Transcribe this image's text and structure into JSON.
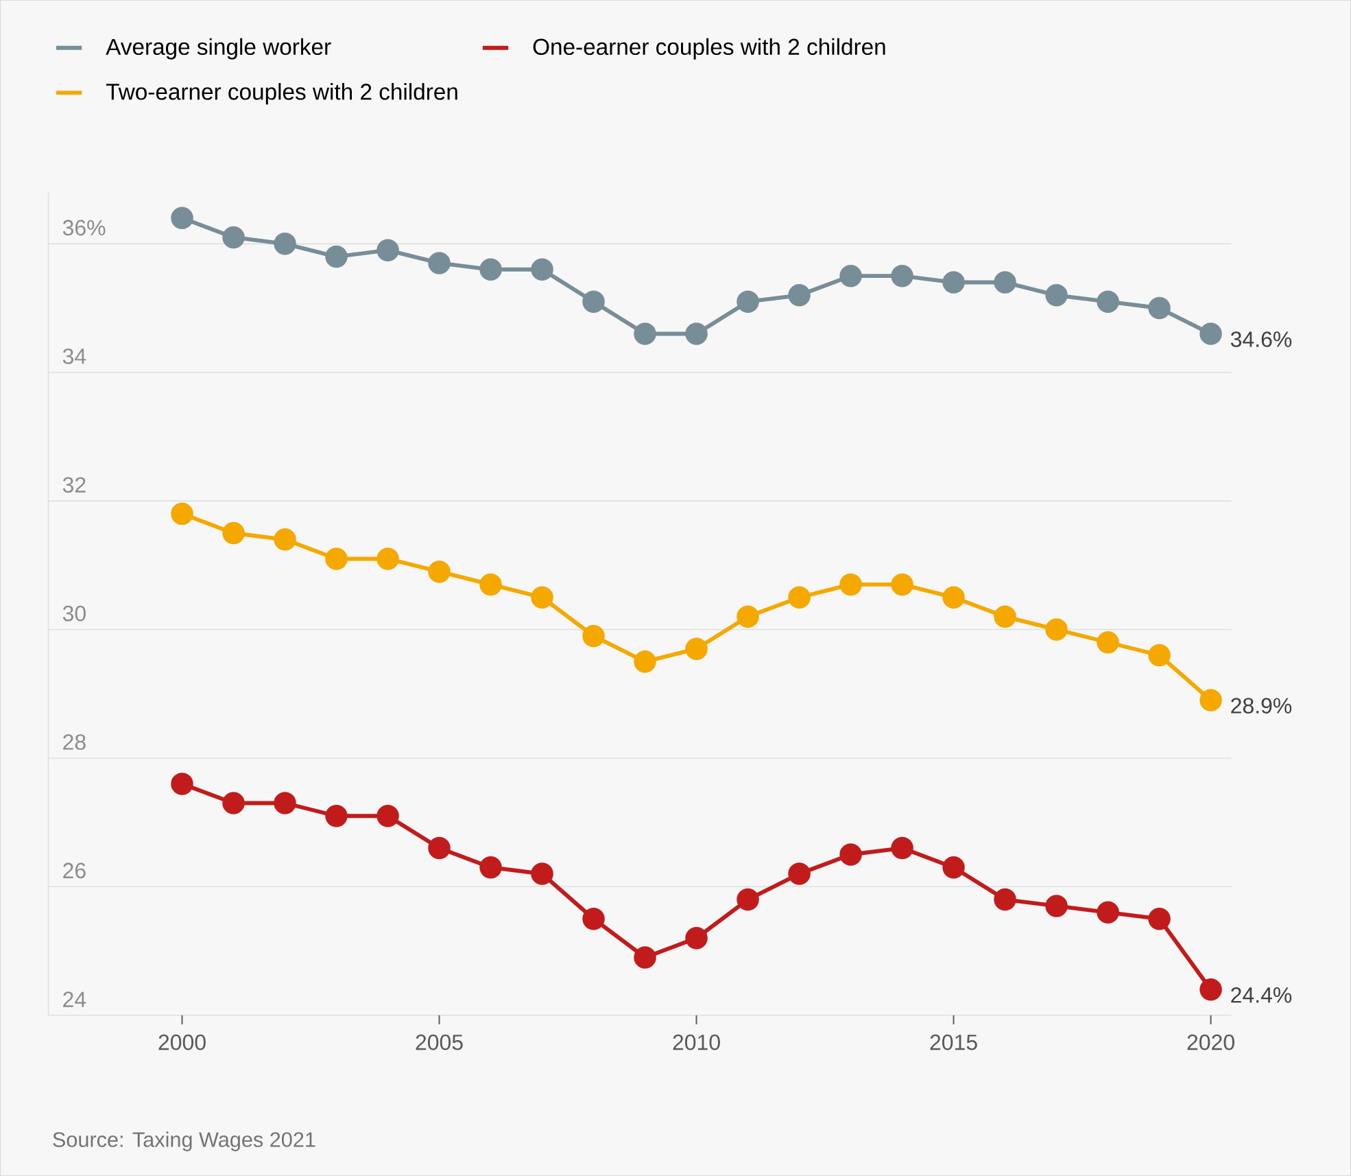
{
  "chart_data": {
    "type": "line",
    "x": [
      2000,
      2001,
      2002,
      2003,
      2004,
      2005,
      2006,
      2007,
      2008,
      2009,
      2010,
      2011,
      2012,
      2013,
      2014,
      2015,
      2016,
      2017,
      2018,
      2019,
      2020
    ],
    "series": [
      {
        "name": "Average single worker",
        "color": "#778d98",
        "values": [
          36.4,
          36.1,
          36.0,
          35.8,
          35.9,
          35.7,
          35.6,
          35.6,
          35.1,
          34.6,
          34.6,
          35.1,
          35.2,
          35.5,
          35.5,
          35.4,
          35.4,
          35.2,
          35.1,
          35.0,
          34.6
        ],
        "value_labels": [
          null,
          null,
          null,
          null,
          null,
          null,
          null,
          null,
          null,
          null,
          null,
          null,
          null,
          null,
          null,
          null,
          null,
          null,
          null,
          null,
          "34.6%"
        ]
      },
      {
        "name": "One-earner couples with 2 children",
        "color": "#c11b1b",
        "values": [
          27.6,
          27.3,
          27.3,
          27.1,
          27.1,
          26.6,
          26.3,
          26.2,
          25.5,
          24.9,
          25.2,
          25.8,
          26.2,
          26.5,
          26.6,
          26.3,
          25.8,
          25.7,
          25.6,
          25.5,
          24.4
        ],
        "value_labels": [
          null,
          null,
          null,
          null,
          null,
          null,
          null,
          null,
          null,
          null,
          null,
          null,
          null,
          null,
          null,
          null,
          null,
          null,
          null,
          null,
          "24.4%"
        ]
      },
      {
        "name": "Two-earner couples with 2 children",
        "color": "#f5a800",
        "values": [
          31.8,
          31.5,
          31.4,
          31.1,
          31.1,
          30.9,
          30.7,
          30.5,
          29.9,
          29.5,
          29.7,
          30.2,
          30.5,
          30.7,
          30.7,
          30.5,
          30.2,
          30.0,
          29.8,
          29.6,
          28.9
        ],
        "value_labels": [
          null,
          null,
          null,
          null,
          null,
          null,
          null,
          null,
          null,
          null,
          null,
          null,
          null,
          null,
          null,
          null,
          null,
          null,
          null,
          null,
          "28.9%"
        ]
      }
    ],
    "xlim": [
      1997.4,
      2020.4
    ],
    "ylim": [
      24,
      36.8
    ],
    "xticks": [
      2000,
      2005,
      2010,
      2015,
      2020
    ],
    "yticks": [
      24,
      26,
      28,
      30,
      32,
      34,
      {
        "value": 36,
        "label": "36%"
      }
    ],
    "grid": "y",
    "legend": "top left",
    "marker": "circle",
    "annotations": [
      "Source: Taxing Wages 2021"
    ]
  }
}
